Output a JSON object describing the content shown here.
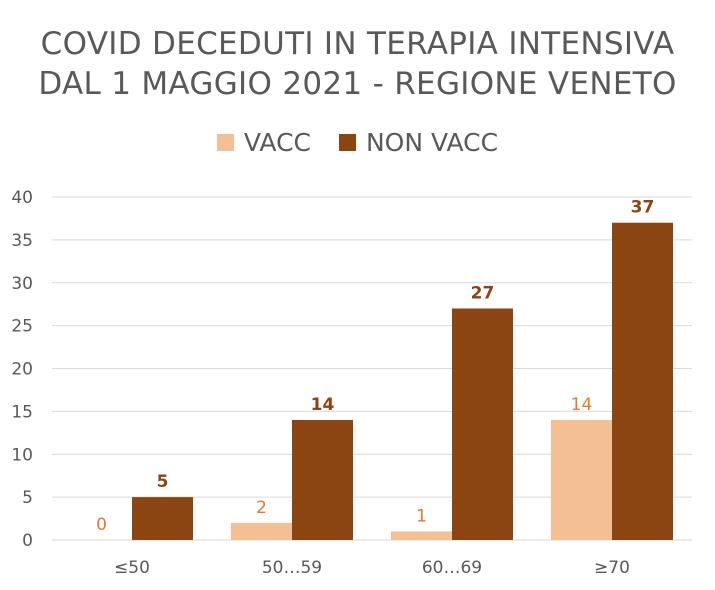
{
  "colors": {
    "vacc": "#F4BF94",
    "nonvacc": "#8B4513",
    "vacc_label": "#E07A2E",
    "nonvacc_label": "#8B4513",
    "axis_text": "#595959",
    "grid": "#D9D9D9"
  },
  "chart_data": {
    "type": "bar",
    "title": "COVID DECEDUTI IN TERAPIA INTENSIVA",
    "subtitle": "DAL 1 MAGGIO 2021 - REGIONE VENETO",
    "categories": [
      "≤50",
      "50…59",
      "60…69",
      "≥70"
    ],
    "series": [
      {
        "name": "VACC",
        "values": [
          0,
          2,
          1,
          14
        ]
      },
      {
        "name": "NON VACC",
        "values": [
          5,
          14,
          27,
          37
        ]
      }
    ],
    "yticks": [
      0,
      5,
      10,
      15,
      20,
      25,
      30,
      35,
      40
    ],
    "ylim": [
      0,
      40
    ],
    "grid": true,
    "legend": "top-center",
    "data_labels": true
  }
}
